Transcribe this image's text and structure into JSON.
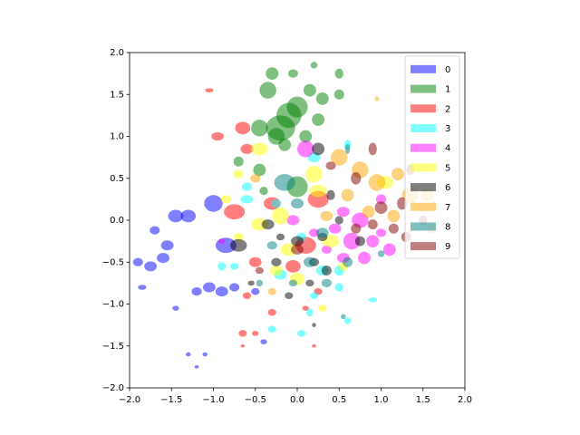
{
  "chart_data": {
    "type": "scatter",
    "marker": "ellipse",
    "alpha": 0.5,
    "legend": "upper right",
    "xlim": [
      -2,
      2
    ],
    "ylim": [
      -2,
      2
    ],
    "xticks": [
      {
        "value": -2,
        "label": "−2.0"
      },
      {
        "value": -1.5,
        "label": "−1.5"
      },
      {
        "value": -1,
        "label": "−1.0"
      },
      {
        "value": -0.5,
        "label": "−0.5"
      },
      {
        "value": 0,
        "label": "0.0"
      },
      {
        "value": 0.5,
        "label": "0.5"
      },
      {
        "value": 1,
        "label": "1.0"
      },
      {
        "value": 1.5,
        "label": "1.5"
      },
      {
        "value": 2,
        "label": "2.0"
      }
    ],
    "yticks": [
      {
        "value": -2,
        "label": "−2.0"
      },
      {
        "value": -1.5,
        "label": "−1.5"
      },
      {
        "value": -1,
        "label": "−1.0"
      },
      {
        "value": -0.5,
        "label": "−0.5"
      },
      {
        "value": 0,
        "label": "0.0"
      },
      {
        "value": 0.5,
        "label": "0.5"
      },
      {
        "value": 1,
        "label": "1.0"
      },
      {
        "value": 1.5,
        "label": "1.5"
      },
      {
        "value": 2,
        "label": "2.0"
      }
    ],
    "series": [
      {
        "name": "0",
        "color": "#0000ff",
        "x": [
          -1.9,
          -1.85,
          -1.75,
          -1.6,
          -1.7,
          -1.55,
          -1.45,
          -1.3,
          -1.2,
          -1.05,
          -1.0,
          -0.85,
          -0.9,
          -1.3,
          -1.1,
          -1.2,
          -0.75,
          -1.45,
          -0.4,
          -0.5
        ],
        "values": [
          -0.5,
          -0.8,
          -0.55,
          -0.45,
          -0.12,
          -0.3,
          0.05,
          0.05,
          -0.85,
          -0.8,
          0.2,
          -0.3,
          -0.85,
          -1.6,
          -1.6,
          -1.75,
          -0.8,
          -1.05,
          -1.45,
          -0.85
        ],
        "widths": [
          0.12,
          0.1,
          0.15,
          0.15,
          0.12,
          0.15,
          0.18,
          0.18,
          0.12,
          0.15,
          0.22,
          0.25,
          0.15,
          0.06,
          0.06,
          0.05,
          0.12,
          0.08,
          0.08,
          0.1
        ],
        "heights": [
          0.1,
          0.06,
          0.12,
          0.12,
          0.1,
          0.12,
          0.15,
          0.15,
          0.1,
          0.12,
          0.2,
          0.18,
          0.12,
          0.05,
          0.05,
          0.04,
          0.1,
          0.06,
          0.06,
          0.08
        ]
      },
      {
        "name": "1",
        "color": "#008000",
        "x": [
          -0.1,
          -0.2,
          0.0,
          -0.35,
          -0.3,
          0.15,
          0.3,
          0.5,
          0.5,
          0.2,
          -0.05,
          -0.45,
          -0.45,
          -0.7,
          -0.4,
          -0.15,
          0.25,
          -0.25,
          0.0,
          0.1
        ],
        "values": [
          1.25,
          1.1,
          1.35,
          1.55,
          1.75,
          1.55,
          1.45,
          1.5,
          1.75,
          1.85,
          1.75,
          1.1,
          0.6,
          0.7,
          0.35,
          0.9,
          1.2,
          1.0,
          0.4,
          1.0
        ],
        "widths": [
          0.3,
          0.35,
          0.25,
          0.2,
          0.15,
          0.15,
          0.15,
          0.12,
          0.1,
          0.08,
          0.12,
          0.2,
          0.15,
          0.12,
          0.1,
          0.15,
          0.15,
          0.2,
          0.25,
          0.15
        ],
        "heights": [
          0.3,
          0.3,
          0.25,
          0.2,
          0.15,
          0.15,
          0.15,
          0.12,
          0.12,
          0.08,
          0.1,
          0.2,
          0.15,
          0.12,
          0.1,
          0.15,
          0.15,
          0.2,
          0.25,
          0.15
        ]
      },
      {
        "name": "2",
        "color": "#ff0000",
        "x": [
          -1.05,
          -0.95,
          -0.65,
          -0.6,
          -0.75,
          -0.3,
          0.25,
          0.1,
          -0.05,
          -0.5,
          -0.6,
          -0.3,
          0.1,
          -0.65,
          -0.5,
          0.25,
          -0.65,
          0.2
        ],
        "values": [
          1.55,
          1.0,
          1.1,
          0.85,
          0.1,
          0.2,
          0.25,
          -0.3,
          -0.55,
          -0.5,
          -0.9,
          -1.1,
          -1.05,
          -1.35,
          -1.35,
          -0.85,
          -1.5,
          -1.5
        ],
        "widths": [
          0.1,
          0.15,
          0.18,
          0.15,
          0.25,
          0.2,
          0.25,
          0.25,
          0.18,
          0.15,
          0.1,
          0.1,
          0.08,
          0.1,
          0.08,
          0.1,
          0.05,
          0.05
        ],
        "heights": [
          0.05,
          0.1,
          0.15,
          0.12,
          0.18,
          0.15,
          0.2,
          0.2,
          0.15,
          0.12,
          0.08,
          0.08,
          0.06,
          0.08,
          0.06,
          0.08,
          0.04,
          0.04
        ]
      },
      {
        "name": "3",
        "color": "#00ffff",
        "x": [
          -0.6,
          -0.6,
          -0.25,
          -0.2,
          0.3,
          0.2,
          0.5,
          0.5,
          0.6,
          0.05,
          -0.75,
          -0.9,
          -0.3,
          0.05,
          0.9,
          0.6,
          0.15,
          0.2
        ],
        "values": [
          0.4,
          0.25,
          0.2,
          -0.65,
          -0.6,
          -0.9,
          -0.6,
          -0.8,
          0.9,
          -0.2,
          -0.55,
          -0.55,
          -1.3,
          -1.35,
          -0.95,
          -1.2,
          -1.1,
          0.75
        ],
        "widths": [
          0.12,
          0.15,
          0.12,
          0.15,
          0.15,
          0.1,
          0.12,
          0.1,
          0.08,
          0.12,
          0.1,
          0.1,
          0.1,
          0.1,
          0.1,
          0.08,
          0.08,
          0.15
        ],
        "heights": [
          0.1,
          0.1,
          0.1,
          0.12,
          0.12,
          0.08,
          0.12,
          0.1,
          0.12,
          0.1,
          0.08,
          0.1,
          0.08,
          0.08,
          0.06,
          0.08,
          0.1,
          0.12
        ]
      },
      {
        "name": "4",
        "color": "#ff00ff",
        "x": [
          0.1,
          -0.05,
          0.55,
          0.75,
          0.65,
          0.9,
          0.8,
          0.55,
          1.1,
          1.0,
          0.35,
          1.0,
          -0.9,
          0.2,
          0.45
        ],
        "values": [
          0.85,
          0.0,
          0.1,
          0.0,
          -0.25,
          -0.25,
          -0.45,
          -0.45,
          -0.35,
          -0.15,
          -0.35,
          0.25,
          -0.25,
          -0.15,
          -0.1
        ],
        "widths": [
          0.2,
          0.15,
          0.15,
          0.2,
          0.2,
          0.15,
          0.15,
          0.15,
          0.15,
          0.12,
          0.12,
          0.12,
          0.08,
          0.12,
          0.15
        ],
        "heights": [
          0.2,
          0.12,
          0.12,
          0.18,
          0.2,
          0.15,
          0.15,
          0.12,
          0.15,
          0.1,
          0.1,
          0.12,
          0.06,
          0.1,
          0.12
        ]
      },
      {
        "name": "5",
        "color": "#ffff00",
        "x": [
          0.2,
          -0.45,
          -0.7,
          -0.45,
          -0.2,
          -0.1,
          0.0,
          -0.25,
          0.4,
          -0.7,
          1.05,
          0.55,
          -0.85,
          0.3,
          0.25
        ],
        "values": [
          0.55,
          0.85,
          0.55,
          -0.05,
          0.05,
          -0.35,
          -0.7,
          -0.6,
          -0.25,
          -0.2,
          0.45,
          -0.55,
          0.25,
          -1.05,
          0.35
        ],
        "widths": [
          0.2,
          0.2,
          0.12,
          0.2,
          0.2,
          0.2,
          0.18,
          0.15,
          0.2,
          0.12,
          0.2,
          0.12,
          0.12,
          0.1,
          0.2
        ],
        "heights": [
          0.2,
          0.15,
          0.1,
          0.15,
          0.2,
          0.15,
          0.15,
          0.12,
          0.15,
          0.1,
          0.15,
          0.1,
          0.1,
          0.08,
          0.15
        ]
      },
      {
        "name": "6",
        "color": "#000000",
        "x": [
          0.25,
          -0.7,
          -0.35,
          0.0,
          0.3,
          0.35,
          0.2,
          -0.25,
          -0.1,
          0.15,
          0.75,
          0.4,
          0.5,
          -0.2,
          -0.55,
          0.2
        ],
        "values": [
          0.85,
          -0.3,
          -0.05,
          -0.25,
          -0.2,
          -0.6,
          -0.5,
          -0.5,
          -0.9,
          -0.75,
          -0.25,
          0.3,
          0.0,
          -0.2,
          -0.75,
          -1.25
        ],
        "widths": [
          0.15,
          0.2,
          0.15,
          0.15,
          0.12,
          0.12,
          0.12,
          0.12,
          0.1,
          0.1,
          0.12,
          0.1,
          0.1,
          0.1,
          0.08,
          0.05
        ],
        "heights": [
          0.15,
          0.15,
          0.12,
          0.12,
          0.1,
          0.12,
          0.1,
          0.1,
          0.08,
          0.08,
          0.12,
          0.12,
          0.1,
          0.08,
          0.06,
          0.05
        ]
      },
      {
        "name": "7",
        "color": "#ffa500",
        "x": [
          0.5,
          0.75,
          0.95,
          1.2,
          1.35,
          1.55,
          1.15,
          0.6,
          0.85,
          0.35,
          -0.5,
          0.95,
          1.6,
          -0.3
        ],
        "values": [
          0.75,
          0.6,
          0.45,
          0.55,
          0.3,
          0.3,
          0.05,
          0.3,
          0.1,
          0.05,
          0.5,
          1.45,
          -0.1,
          -0.85
        ],
        "widths": [
          0.2,
          0.2,
          0.2,
          0.15,
          0.2,
          0.15,
          0.15,
          0.15,
          0.15,
          0.15,
          0.12,
          0.05,
          0.12,
          0.1
        ],
        "heights": [
          0.2,
          0.2,
          0.2,
          0.15,
          0.2,
          0.15,
          0.15,
          0.15,
          0.15,
          0.12,
          0.1,
          0.06,
          0.12,
          0.08
        ]
      },
      {
        "name": "8",
        "color": "#008080",
        "x": [
          -0.15,
          0.0,
          0.3,
          0.15,
          0.35,
          -0.05,
          0.6,
          -0.3,
          0.6,
          0.55,
          1.0,
          -0.45
        ],
        "values": [
          0.45,
          0.2,
          -0.15,
          -0.5,
          -0.75,
          -0.75,
          -0.5,
          -0.3,
          0.85,
          -1.15,
          -0.4,
          -0.75
        ],
        "widths": [
          0.25,
          0.15,
          0.15,
          0.15,
          0.12,
          0.1,
          0.12,
          0.12,
          0.06,
          0.06,
          0.08,
          0.08
        ],
        "heights": [
          0.2,
          0.12,
          0.12,
          0.12,
          0.1,
          0.08,
          0.12,
          0.1,
          0.12,
          0.06,
          0.08,
          0.08
        ]
      },
      {
        "name": "9",
        "color": "#800000",
        "x": [
          0.9,
          0.7,
          1.0,
          1.15,
          1.3,
          1.25,
          1.5,
          1.35,
          0.9,
          0.4,
          0.0,
          0.7,
          -0.45
        ],
        "values": [
          0.85,
          0.5,
          0.15,
          -0.1,
          -0.2,
          0.2,
          0.0,
          0.6,
          -0.05,
          0.65,
          -0.35,
          -0.1,
          -0.6
        ],
        "widths": [
          0.1,
          0.12,
          0.15,
          0.12,
          0.12,
          0.12,
          0.1,
          0.1,
          0.12,
          0.12,
          0.15,
          0.12,
          0.1
        ],
        "heights": [
          0.15,
          0.15,
          0.15,
          0.12,
          0.12,
          0.15,
          0.12,
          0.12,
          0.12,
          0.1,
          0.12,
          0.12,
          0.08
        ]
      }
    ]
  }
}
